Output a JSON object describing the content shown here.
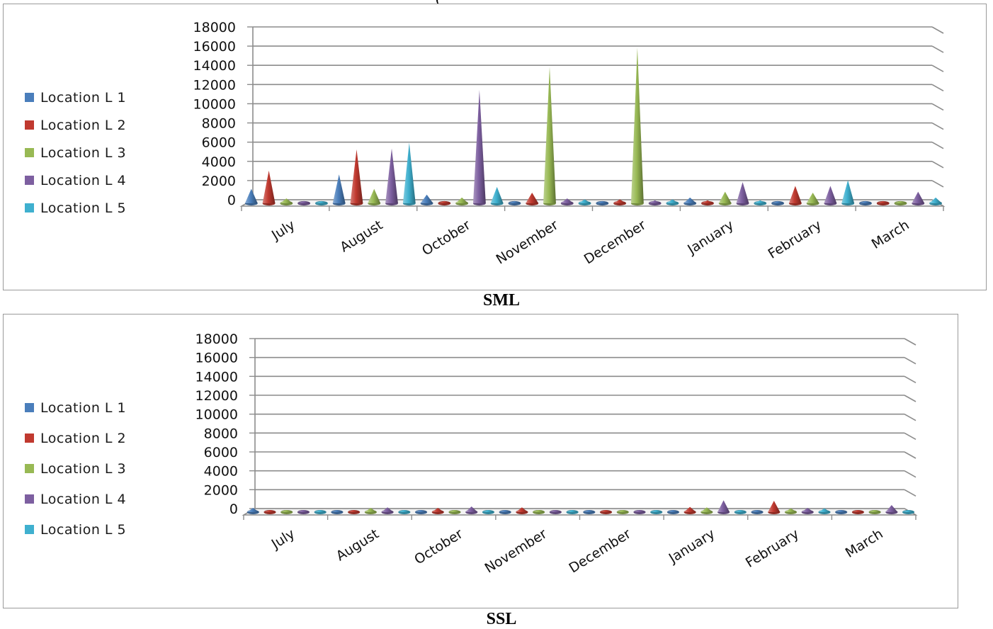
{
  "top_partial_title": "(",
  "chart_data": [
    {
      "type": "bar",
      "caption": "SML",
      "categories": [
        "July",
        "August",
        "October",
        "November",
        "December",
        "January",
        "February",
        "March"
      ],
      "ylim": [
        0,
        18000
      ],
      "yticks": [
        "18000",
        "16000",
        "14000",
        "12000",
        "10000",
        "8000",
        "6000",
        "4000",
        "2000",
        "0"
      ],
      "grid": true,
      "legend": "left",
      "series": [
        {
          "name": "Location  L 1",
          "color": "#4a7ebb",
          "values": [
            1500,
            3000,
            900,
            0,
            0,
            600,
            0,
            0
          ]
        },
        {
          "name": "Location  L 2",
          "color": "#c0392f",
          "values": [
            3400,
            5600,
            200,
            1100,
            400,
            300,
            1800,
            0
          ]
        },
        {
          "name": "Location  L 3",
          "color": "#98b954",
          "values": [
            500,
            1500,
            600,
            14200,
            16200,
            1200,
            1100,
            0
          ]
        },
        {
          "name": "Location  L 4",
          "color": "#7d5fa0",
          "values": [
            100,
            5700,
            11800,
            500,
            300,
            2200,
            1800,
            1200
          ]
        },
        {
          "name": "Location  L 5",
          "color": "#3fb0cf",
          "values": [
            0,
            6300,
            1700,
            400,
            400,
            300,
            2400,
            600
          ]
        }
      ]
    },
    {
      "type": "bar",
      "caption": "SSL",
      "categories": [
        "July",
        "August",
        "October",
        "November",
        "December",
        "January",
        "February",
        "March"
      ],
      "ylim": [
        0,
        18000
      ],
      "yticks": [
        "18000",
        "16000",
        "14000",
        "12000",
        "10000",
        "8000",
        "6000",
        "4000",
        "2000",
        "0"
      ],
      "grid": true,
      "legend": "left",
      "series": [
        {
          "name": "Location  L 1",
          "color": "#4a7ebb",
          "values": [
            450,
            0,
            0,
            0,
            0,
            0,
            0,
            0
          ]
        },
        {
          "name": "Location  L 2",
          "color": "#c0392f",
          "values": [
            0,
            0,
            450,
            500,
            0,
            550,
            1200,
            0
          ]
        },
        {
          "name": "Location  L 3",
          "color": "#98b954",
          "values": [
            0,
            450,
            0,
            0,
            0,
            500,
            400,
            0
          ]
        },
        {
          "name": "Location  L 4",
          "color": "#7d5fa0",
          "values": [
            0,
            500,
            600,
            0,
            0,
            1250,
            450,
            750
          ]
        },
        {
          "name": "Location  L 5",
          "color": "#3fb0cf",
          "values": [
            0,
            0,
            0,
            0,
            0,
            0,
            400,
            0
          ]
        }
      ]
    }
  ]
}
